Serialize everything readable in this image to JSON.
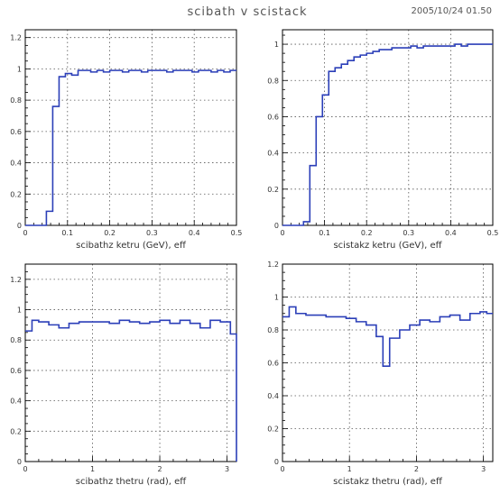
{
  "title": "scibath v scistack",
  "timestamp": "2005/10/24   01.50",
  "colors": {
    "line": "#2b3fb8",
    "line_light": "#8a97dd",
    "grid": "#555555",
    "axis": "#000000"
  },
  "chart_data": [
    {
      "type": "line",
      "xlabel": "scibathz ketru (GeV), eff",
      "xlim": [
        0,
        0.5
      ],
      "ylim": [
        0,
        1.25
      ],
      "xticks": [
        0,
        0.1,
        0.2,
        0.3,
        0.4,
        0.5
      ],
      "xtick_labels": [
        "0",
        "0.1",
        "0.2",
        "0.3",
        "0.4",
        "0.5"
      ],
      "yticks": [
        0,
        0.2,
        0.4,
        0.6,
        0.8,
        1,
        1.2
      ],
      "ytick_labels": [
        "0",
        "0.2",
        "0.4",
        "0.6",
        "0.8",
        "1",
        "1.2"
      ],
      "grid": true,
      "series": [
        {
          "x": [
            0,
            0.025,
            0.05,
            0.065,
            0.08,
            0.095,
            0.11,
            0.125,
            0.14,
            0.155,
            0.17,
            0.185,
            0.2,
            0.215,
            0.23,
            0.245,
            0.26,
            0.275,
            0.29,
            0.305,
            0.32,
            0.335,
            0.35,
            0.365,
            0.38,
            0.395,
            0.41,
            0.425,
            0.44,
            0.455,
            0.47,
            0.485,
            0.5
          ],
          "y": [
            0.0,
            0.0,
            0.09,
            0.76,
            0.95,
            0.97,
            0.96,
            0.99,
            0.99,
            0.98,
            0.99,
            0.98,
            0.99,
            0.99,
            0.98,
            0.99,
            0.99,
            0.98,
            0.99,
            0.99,
            0.99,
            0.98,
            0.99,
            0.99,
            0.99,
            0.98,
            0.99,
            0.99,
            0.98,
            0.99,
            0.98,
            0.99,
            0.99
          ]
        }
      ]
    },
    {
      "type": "line",
      "xlabel": "scistakz ketru (GeV), eff",
      "xlim": [
        0,
        0.5
      ],
      "ylim": [
        0,
        1.08
      ],
      "xticks": [
        0,
        0.1,
        0.2,
        0.3,
        0.4,
        0.5
      ],
      "xtick_labels": [
        "0",
        "0.1",
        "0.2",
        "0.3",
        "0.4",
        "0.5"
      ],
      "yticks": [
        0,
        0.2,
        0.4,
        0.6,
        0.8,
        1
      ],
      "ytick_labels": [
        "0",
        "0.2",
        "0.4",
        "0.6",
        "0.8",
        "1"
      ],
      "grid": true,
      "series": [
        {
          "x": [
            0,
            0.025,
            0.05,
            0.065,
            0.08,
            0.095,
            0.11,
            0.125,
            0.14,
            0.155,
            0.17,
            0.185,
            0.2,
            0.215,
            0.23,
            0.245,
            0.26,
            0.275,
            0.29,
            0.305,
            0.32,
            0.335,
            0.35,
            0.365,
            0.38,
            0.395,
            0.41,
            0.425,
            0.44,
            0.455,
            0.47,
            0.485,
            0.5
          ],
          "y": [
            0.0,
            0.0,
            0.02,
            0.33,
            0.6,
            0.72,
            0.85,
            0.87,
            0.89,
            0.91,
            0.93,
            0.94,
            0.95,
            0.96,
            0.97,
            0.97,
            0.98,
            0.98,
            0.98,
            0.99,
            0.98,
            0.99,
            0.99,
            0.99,
            0.99,
            0.99,
            1.0,
            0.99,
            1.0,
            1.0,
            1.0,
            1.0,
            1.0
          ]
        }
      ]
    },
    {
      "type": "line",
      "xlabel": "scibathz thetru (rad), eff",
      "xlim": [
        0,
        3.14
      ],
      "ylim": [
        0,
        1.3
      ],
      "xticks": [
        0,
        1,
        2,
        3
      ],
      "xtick_labels": [
        "0",
        "1",
        "2",
        "3"
      ],
      "yticks": [
        0,
        0.2,
        0.4,
        0.6,
        0.8,
        1,
        1.2
      ],
      "ytick_labels": [
        "0",
        "0.2",
        "0.4",
        "0.6",
        "0.8",
        "1",
        "1.2"
      ],
      "grid": true,
      "series": [
        {
          "x": [
            0,
            0.1,
            0.2,
            0.35,
            0.5,
            0.65,
            0.8,
            0.95,
            1.1,
            1.25,
            1.4,
            1.55,
            1.7,
            1.85,
            2.0,
            2.15,
            2.3,
            2.45,
            2.6,
            2.75,
            2.9,
            3.05,
            3.14
          ],
          "y": [
            0.86,
            0.93,
            0.92,
            0.9,
            0.88,
            0.91,
            0.92,
            0.92,
            0.92,
            0.91,
            0.93,
            0.92,
            0.91,
            0.92,
            0.93,
            0.91,
            0.93,
            0.91,
            0.88,
            0.93,
            0.92,
            0.84,
            0.0
          ]
        }
      ]
    },
    {
      "type": "line",
      "xlabel": "scistakz thetru (rad), eff",
      "xlim": [
        0,
        3.14
      ],
      "ylim": [
        0,
        1.2
      ],
      "xticks": [
        0,
        1,
        2,
        3
      ],
      "xtick_labels": [
        "0",
        "1",
        "2",
        "3"
      ],
      "yticks": [
        0,
        0.2,
        0.4,
        0.6,
        0.8,
        1,
        1.2
      ],
      "ytick_labels": [
        "0",
        "0.2",
        "0.4",
        "0.6",
        "0.8",
        "1",
        "1.2"
      ],
      "grid": true,
      "series": [
        {
          "x": [
            0,
            0.1,
            0.2,
            0.35,
            0.5,
            0.65,
            0.8,
            0.95,
            1.1,
            1.25,
            1.4,
            1.5,
            1.6,
            1.75,
            1.9,
            2.05,
            2.2,
            2.35,
            2.5,
            2.65,
            2.8,
            2.95,
            3.05,
            3.14
          ],
          "y": [
            0.88,
            0.94,
            0.9,
            0.89,
            0.89,
            0.88,
            0.88,
            0.87,
            0.85,
            0.83,
            0.76,
            0.58,
            0.75,
            0.8,
            0.83,
            0.86,
            0.85,
            0.88,
            0.89,
            0.86,
            0.9,
            0.91,
            0.9,
            0.9
          ]
        }
      ]
    }
  ]
}
